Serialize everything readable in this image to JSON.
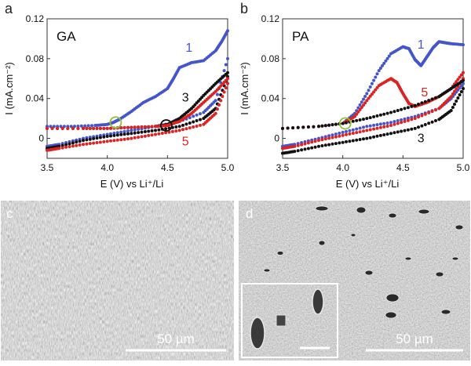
{
  "panels": {
    "a": {
      "letter": "a",
      "sample": "GA"
    },
    "b": {
      "letter": "b",
      "sample": "PA"
    },
    "c": {
      "letter": "c",
      "scale": "50 µm"
    },
    "d": {
      "letter": "d",
      "scale": "50 µm"
    }
  },
  "colors": {
    "cycle1": "#4455cc",
    "cycle3": "#111111",
    "cycle5": "#dd2222",
    "marker": "#8fbf3f"
  },
  "chart_data": [
    {
      "type": "scatter",
      "xlabel": "E (V) vs Li⁺/Li",
      "ylabel": "I (mA.cm⁻²)",
      "xlim": [
        3.5,
        5.0
      ],
      "ylim": [
        -0.02,
        0.12
      ],
      "xticks": [
        "3.5",
        "4.0",
        "4.5",
        "5.0"
      ],
      "yticks": [
        "0",
        "0.04",
        "0.08",
        "0.12"
      ],
      "annotations": [
        "GA"
      ],
      "series": [
        {
          "name": "1",
          "color": "#4455cc",
          "x": [
            3.5,
            3.7,
            3.9,
            4.0,
            4.05,
            4.1,
            4.2,
            4.3,
            4.4,
            4.5,
            4.55,
            4.6,
            4.7,
            4.8,
            4.9,
            4.95,
            5.0
          ],
          "y": [
            0.012,
            0.012,
            0.013,
            0.014,
            0.016,
            0.019,
            0.027,
            0.036,
            0.042,
            0.05,
            0.06,
            0.071,
            0.076,
            0.078,
            0.088,
            0.097,
            0.108
          ]
        },
        {
          "name": "1",
          "color": "#4455cc",
          "x": [
            5.0,
            4.9,
            4.8,
            4.6,
            4.4,
            4.2,
            4.0,
            3.8,
            3.6,
            3.5
          ],
          "y": [
            0.08,
            0.038,
            0.026,
            0.017,
            0.012,
            0.008,
            0.004,
            0.0,
            -0.006,
            -0.008
          ]
        },
        {
          "name": "3",
          "color": "#111111",
          "x": [
            3.5,
            3.8,
            4.0,
            4.2,
            4.4,
            4.5,
            4.6,
            4.7,
            4.8,
            4.9,
            5.0
          ],
          "y": [
            0.01,
            0.01,
            0.01,
            0.011,
            0.012,
            0.014,
            0.02,
            0.03,
            0.043,
            0.055,
            0.066
          ]
        },
        {
          "name": "3",
          "color": "#111111",
          "x": [
            5.0,
            4.9,
            4.8,
            4.6,
            4.4,
            4.2,
            4.0,
            3.8,
            3.6,
            3.5
          ],
          "y": [
            0.062,
            0.03,
            0.02,
            0.012,
            0.008,
            0.005,
            0.002,
            -0.002,
            -0.008,
            -0.01
          ]
        },
        {
          "name": "5",
          "color": "#dd2222",
          "x": [
            3.5,
            3.8,
            4.0,
            4.2,
            4.4,
            4.5,
            4.6,
            4.7,
            4.8,
            4.9,
            5.0
          ],
          "y": [
            0.01,
            0.01,
            0.01,
            0.011,
            0.012,
            0.013,
            0.017,
            0.025,
            0.036,
            0.047,
            0.06
          ]
        },
        {
          "name": "5",
          "color": "#dd2222",
          "x": [
            5.0,
            4.9,
            4.8,
            4.6,
            4.4,
            4.2,
            4.0,
            3.8,
            3.6,
            3.5
          ],
          "y": [
            0.055,
            0.025,
            0.014,
            0.008,
            0.004,
            0.0,
            -0.003,
            -0.006,
            -0.01,
            -0.012
          ]
        }
      ],
      "markers": [
        {
          "x": 4.07,
          "y": 0.016,
          "color": "#8fbf3f"
        },
        {
          "x": 4.49,
          "y": 0.013,
          "color": "#111111"
        }
      ],
      "curve_labels": [
        {
          "text": "1",
          "color": "#4455cc",
          "x": 4.65,
          "y": 0.087
        },
        {
          "text": "3",
          "color": "#111111",
          "x": 4.62,
          "y": 0.037
        },
        {
          "text": "5",
          "color": "#dd2222",
          "x": 4.62,
          "y": -0.007
        }
      ]
    },
    {
      "type": "scatter",
      "xlabel": "E (V) vs Li⁺/Li",
      "ylabel": "I (mA.cm⁻²)",
      "xlim": [
        3.5,
        5.0
      ],
      "ylim": [
        -0.02,
        0.12
      ],
      "xticks": [
        "3.5",
        "4.0",
        "4.5",
        "5.0"
      ],
      "yticks": [
        "0",
        "0.04",
        "0.08",
        "0.12"
      ],
      "annotations": [
        "PA"
      ],
      "series": [
        {
          "name": "1",
          "color": "#4455cc",
          "x": [
            3.5,
            3.8,
            4.0,
            4.1,
            4.2,
            4.3,
            4.4,
            4.5,
            4.55,
            4.6,
            4.65,
            4.7,
            4.75,
            4.8,
            4.85,
            4.9,
            5.0
          ],
          "y": [
            0.01,
            0.012,
            0.015,
            0.025,
            0.045,
            0.068,
            0.085,
            0.092,
            0.09,
            0.079,
            0.073,
            0.082,
            0.091,
            0.097,
            0.096,
            0.095,
            0.094
          ]
        },
        {
          "name": "1",
          "color": "#4455cc",
          "x": [
            5.0,
            4.9,
            4.8,
            4.6,
            4.4,
            4.2,
            4.0,
            3.8,
            3.6,
            3.5
          ],
          "y": [
            0.055,
            0.04,
            0.03,
            0.022,
            0.016,
            0.012,
            0.006,
            0.0,
            -0.006,
            -0.008
          ]
        },
        {
          "name": "5",
          "color": "#dd2222",
          "x": [
            3.5,
            3.8,
            4.0,
            4.1,
            4.2,
            4.3,
            4.4,
            4.45,
            4.5,
            4.55,
            4.6,
            4.7,
            4.8,
            4.9,
            5.0
          ],
          "y": [
            0.01,
            0.012,
            0.015,
            0.022,
            0.038,
            0.053,
            0.06,
            0.056,
            0.045,
            0.035,
            0.032,
            0.036,
            0.042,
            0.05,
            0.066
          ]
        },
        {
          "name": "5",
          "color": "#dd2222",
          "x": [
            5.0,
            4.9,
            4.8,
            4.6,
            4.4,
            4.2,
            4.0,
            3.8,
            3.6,
            3.5
          ],
          "y": [
            0.06,
            0.042,
            0.03,
            0.02,
            0.013,
            0.008,
            0.003,
            -0.002,
            -0.008,
            -0.01
          ]
        },
        {
          "name": "3",
          "color": "#111111",
          "x": [
            3.5,
            3.8,
            4.0,
            4.2,
            4.4,
            4.6,
            4.8,
            4.9,
            5.0
          ],
          "y": [
            0.01,
            0.012,
            0.015,
            0.02,
            0.026,
            0.033,
            0.042,
            0.05,
            0.058
          ]
        },
        {
          "name": "3",
          "color": "#111111",
          "x": [
            5.0,
            4.9,
            4.8,
            4.6,
            4.4,
            4.2,
            4.0,
            3.8,
            3.6,
            3.5
          ],
          "y": [
            0.05,
            0.028,
            0.019,
            0.01,
            0.005,
            0.0,
            -0.004,
            -0.008,
            -0.013,
            -0.015
          ]
        }
      ],
      "markers": [
        {
          "x": 4.02,
          "y": 0.015,
          "color": "#8fbf3f"
        }
      ],
      "curve_labels": [
        {
          "text": "1",
          "color": "#4455cc",
          "x": 4.62,
          "y": 0.09
        },
        {
          "text": "5",
          "color": "#dd2222",
          "x": 4.65,
          "y": 0.042
        },
        {
          "text": "3",
          "color": "#111111",
          "x": 4.62,
          "y": -0.004
        }
      ]
    }
  ]
}
